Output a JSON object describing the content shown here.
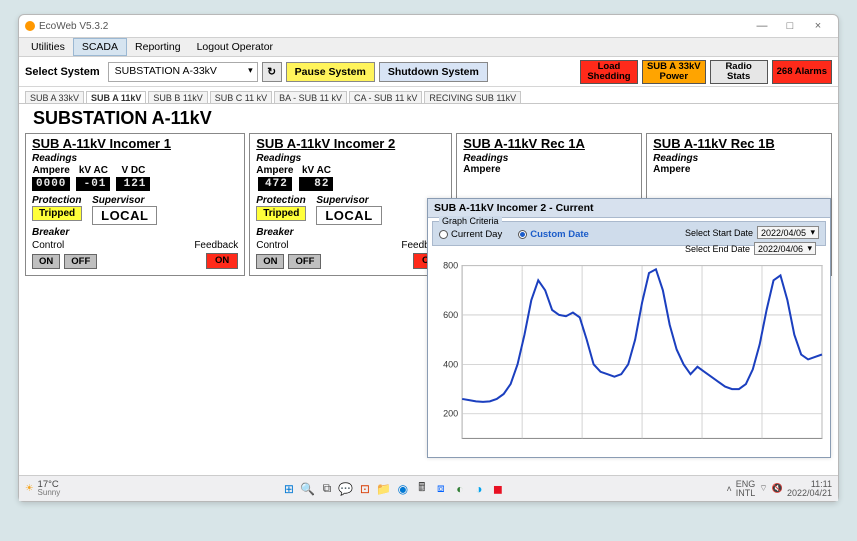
{
  "app": {
    "title": "EcoWeb V5.3.2"
  },
  "menu": {
    "items": [
      "Utilities",
      "SCADA",
      "Reporting",
      "Logout Operator"
    ],
    "active_index": 1
  },
  "toolbar": {
    "select_label": "Select System",
    "system_selected": "SUBSTATION A-33kV",
    "pause_label": "Pause System",
    "shutdown_label": "Shutdown System",
    "status": [
      {
        "line1": "Load",
        "line2": "Shedding",
        "style": "red"
      },
      {
        "line1": "SUB A 33kV",
        "line2": "Power",
        "style": "orange"
      },
      {
        "line1": "Radio",
        "line2": "Stats",
        "style": "grey"
      },
      {
        "line1": "268 Alarms",
        "line2": "",
        "style": "red"
      }
    ]
  },
  "tabs": {
    "items": [
      "SUB A 33kV",
      "SUB A 11kV",
      "SUB B 11kV",
      "SUB C 11 kV",
      "BA - SUB 11 kV",
      "CA - SUB 11 kV",
      "RECIVING SUB 11kV"
    ],
    "active_index": 1
  },
  "page_title": "SUBSTATION A-11kV",
  "panels": [
    {
      "title": "SUB A-11kV Incomer 1",
      "readings": [
        {
          "label": "Ampere",
          "value": "0000"
        },
        {
          "label": "kV AC",
          "value": "-01"
        },
        {
          "label": "V DC",
          "value": "121"
        }
      ],
      "protection_label": "Protection",
      "protection_value": "Tripped",
      "supervisor_label": "Supervisor",
      "supervisor_value": "LOCAL",
      "breaker_label": "Breaker",
      "control_label": "Control",
      "feedback_label": "Feedback",
      "btn_on": "ON",
      "btn_off": "OFF",
      "feedback_value": "ON"
    },
    {
      "title": "SUB A-11kV Incomer 2",
      "readings": [
        {
          "label": "Ampere",
          "value": "472"
        },
        {
          "label": "kV AC",
          "value": "82"
        }
      ],
      "protection_label": "Protection",
      "protection_value": "Tripped",
      "supervisor_label": "Supervisor",
      "supervisor_value": "LOCAL",
      "breaker_label": "Breaker",
      "control_label": "Control",
      "feedback_label": "Feedback",
      "btn_on": "ON",
      "btn_off": "OFF",
      "feedback_value": "ON"
    },
    {
      "title": "SUB A-11kV Rec 1A",
      "readings": [
        {
          "label": "Ampere",
          "value": ""
        }
      ],
      "simple": true
    },
    {
      "title": "SUB A-11kV Rec 1B",
      "readings": [
        {
          "label": "Ampere",
          "value": ""
        }
      ],
      "simple": true
    }
  ],
  "chart": {
    "title": "SUB A-11kV Incomer 2 - Current",
    "criteria_label": "Graph Criteria",
    "radio_current": "Current Day",
    "radio_custom": "Custom Date",
    "radio_selected": "custom",
    "start_label": "Select Start Date",
    "end_label": "Select End Date",
    "start_value": "2022/04/05",
    "end_value": "2022/04/06",
    "type": "line",
    "ylim": [
      100,
      800
    ],
    "yticks": [
      200,
      400,
      600,
      800
    ],
    "line_color": "#1b3fbf",
    "grid_color": "#c9c9c9",
    "background_color": "#ffffff",
    "line_width": 2,
    "series": [
      260,
      255,
      250,
      248,
      250,
      260,
      280,
      320,
      400,
      520,
      660,
      740,
      700,
      620,
      600,
      595,
      610,
      590,
      500,
      400,
      370,
      360,
      350,
      360,
      400,
      500,
      650,
      770,
      785,
      700,
      560,
      460,
      400,
      360,
      390,
      370,
      350,
      330,
      310,
      300,
      300,
      320,
      380,
      480,
      620,
      740,
      760,
      660,
      520,
      440,
      420,
      430,
      440
    ]
  },
  "taskbar": {
    "temp": "17°C",
    "weather": "Sunny",
    "lang1": "ENG",
    "lang2": "INTL",
    "time": "11:11",
    "date": "2022/04/21",
    "icons": [
      "start",
      "search",
      "task",
      "chat",
      "office",
      "folder",
      "edge",
      "calc",
      "dropbox",
      "skype",
      "app1",
      "app2"
    ]
  },
  "colors": {
    "pause_bg": "#fff45c",
    "shutdown_bg": "#d8e4f5",
    "status_red": "#ff2a1a",
    "status_orange": "#ffa400",
    "status_grey": "#e6e6e6",
    "tripped_bg": "#ffff3a",
    "lcd_bg": "#000000",
    "lcd_fg": "#e8e8e8",
    "chart_header_bg": "#d7e1ee",
    "criteria_bg": "#cfdceb"
  }
}
